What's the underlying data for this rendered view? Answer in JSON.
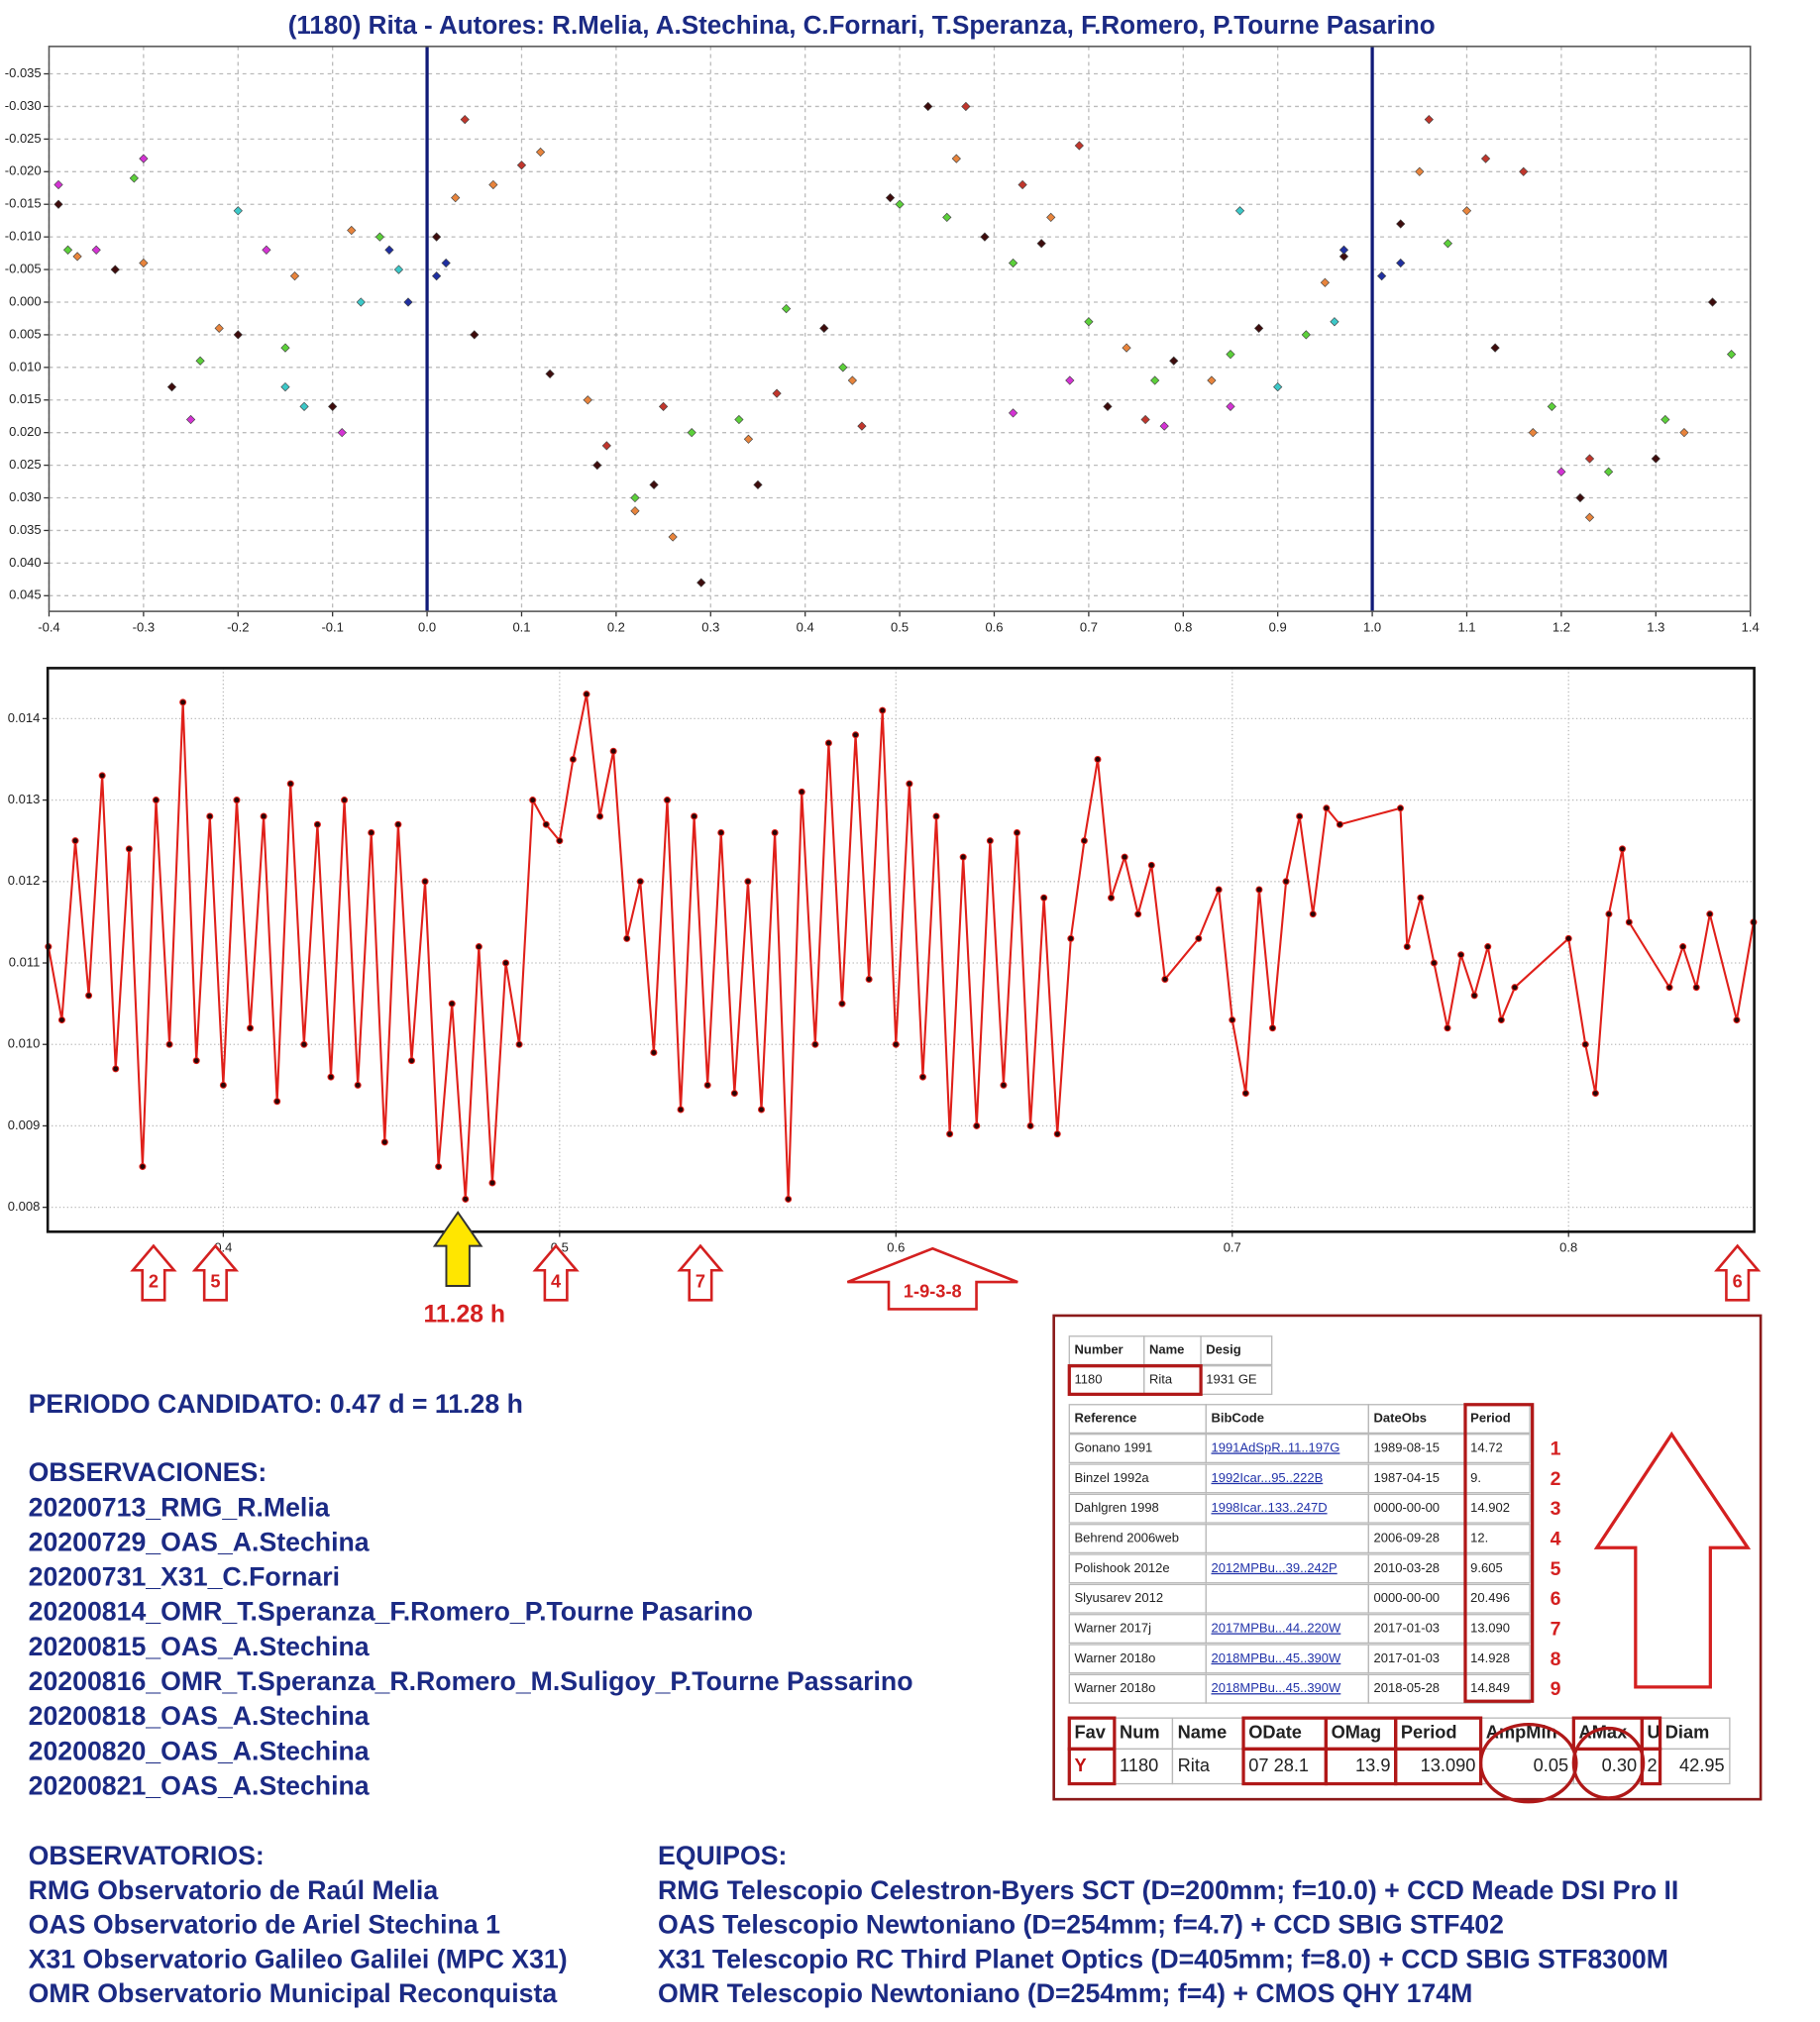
{
  "chart_data": [
    {
      "type": "scatter",
      "title": "(1180) Rita - Autores: R.Melia, A.Stechina, C.Fornari, T.Speranza, F.Romero, P.Tourne Pasarino",
      "xlim": [
        -0.4,
        1.4
      ],
      "ylim": [
        0.0474,
        -0.0392
      ],
      "xticks": [
        -0.4,
        -0.3,
        -0.2,
        -0.1,
        {
          "value": 0,
          "label": "0.0"
        },
        0.1,
        0.2,
        0.3,
        0.4,
        0.5,
        0.6,
        0.7,
        0.8,
        0.9,
        {
          "value": 1,
          "label": "1.0"
        },
        1.1,
        1.2,
        1.3,
        1.4
      ],
      "yticks": [
        -0.035,
        {
          "value": -0.03,
          "label": "-0.030"
        },
        -0.025,
        {
          "value": -0.02,
          "label": "-0.020"
        },
        -0.015,
        {
          "value": -0.01,
          "label": "-0.010"
        },
        -0.005,
        {
          "value": 0,
          "label": "0.000"
        },
        0.005,
        {
          "value": 0.01,
          "label": "0.010"
        },
        0.015,
        {
          "value": 0.02,
          "label": "0.020"
        },
        0.025,
        {
          "value": 0.03,
          "label": "0.030"
        },
        0.035,
        {
          "value": 0.04,
          "label": "0.040"
        },
        0.045
      ],
      "grid": true,
      "vlines": [
        0,
        1
      ],
      "vline_color": "#101a78",
      "series": [
        {
          "color": "#e8843c",
          "x": [
            -0.37,
            -0.3,
            -0.22,
            -0.14,
            -0.08,
            0.03,
            0.07,
            0.12,
            0.17,
            0.22,
            0.26,
            0.34,
            0.45,
            0.56,
            0.66,
            0.74,
            0.83,
            0.95,
            1.05,
            1.1,
            1.17,
            1.23,
            1.33
          ],
          "values": [
            -0.007,
            -0.006,
            0.004,
            -0.004,
            -0.011,
            -0.016,
            -0.018,
            -0.023,
            0.015,
            0.032,
            0.036,
            0.021,
            0.012,
            -0.022,
            -0.013,
            0.007,
            0.012,
            -0.003,
            -0.02,
            -0.014,
            0.02,
            0.033,
            0.02
          ]
        },
        {
          "color": "#3d0c0c",
          "x": [
            -0.39,
            -0.33,
            -0.27,
            -0.2,
            -0.1,
            0.01,
            0.05,
            0.13,
            0.18,
            0.24,
            0.29,
            0.35,
            0.42,
            0.49,
            0.53,
            0.59,
            0.65,
            0.72,
            0.79,
            0.88,
            0.97,
            1.03,
            1.13,
            1.22,
            1.3,
            1.36
          ],
          "values": [
            -0.015,
            -0.005,
            0.013,
            0.005,
            0.016,
            -0.01,
            0.005,
            0.011,
            0.025,
            0.028,
            0.043,
            0.028,
            0.004,
            -0.016,
            -0.03,
            -0.01,
            -0.009,
            0.016,
            0.009,
            0.004,
            -0.007,
            -0.012,
            0.007,
            0.03,
            0.024,
            0
          ]
        },
        {
          "color": "#5cd03a",
          "x": [
            -0.38,
            -0.31,
            -0.24,
            -0.15,
            -0.05,
            0.22,
            0.28,
            0.33,
            0.38,
            0.44,
            0.5,
            0.55,
            0.62,
            0.7,
            0.77,
            0.85,
            0.93,
            1.08,
            1.19,
            1.25,
            1.31,
            1.38
          ],
          "values": [
            -0.008,
            -0.019,
            0.009,
            0.007,
            -0.01,
            0.03,
            0.02,
            0.018,
            0.001,
            0.01,
            -0.015,
            -0.013,
            -0.006,
            0.003,
            0.012,
            0.008,
            0.005,
            -0.009,
            0.016,
            0.026,
            0.018,
            0.008
          ]
        },
        {
          "color": "#d433d4",
          "x": [
            -0.39,
            -0.35,
            -0.3,
            -0.25,
            -0.17,
            -0.09,
            0.62,
            0.68,
            0.78,
            0.85,
            1.2
          ],
          "values": [
            -0.018,
            -0.008,
            -0.022,
            0.018,
            -0.008,
            0.02,
            0.017,
            0.012,
            0.019,
            0.016,
            0.026
          ]
        },
        {
          "color": "#3cc8c8",
          "x": [
            -0.2,
            -0.15,
            -0.13,
            -0.07,
            -0.03,
            0.86,
            0.9,
            0.96
          ],
          "values": [
            -0.014,
            0.013,
            0.016,
            0,
            -0.005,
            -0.014,
            0.013,
            0.003
          ]
        },
        {
          "color": "#1f2fa0",
          "x": [
            -0.04,
            -0.02,
            0.01,
            0.02,
            0.97,
            1.01,
            1.03
          ],
          "values": [
            -0.008,
            0,
            -0.004,
            -0.006,
            -0.008,
            -0.004,
            -0.006
          ]
        },
        {
          "color": "#c0362c",
          "x": [
            0.04,
            0.1,
            0.19,
            0.25,
            0.37,
            0.46,
            0.57,
            0.63,
            0.69,
            0.76,
            1.06,
            1.12,
            1.16,
            1.23
          ],
          "values": [
            -0.028,
            -0.021,
            0.022,
            0.016,
            0.014,
            0.019,
            -0.03,
            -0.018,
            -0.024,
            0.018,
            -0.028,
            -0.022,
            -0.02,
            0.024
          ]
        }
      ]
    },
    {
      "type": "line",
      "xlim": [
        0.3478,
        0.8552
      ],
      "ylim": [
        0.0077,
        0.01462
      ],
      "xticks": [
        0.4,
        0.5,
        0.6,
        0.7,
        0.8
      ],
      "yticks": [
        0.008,
        0.009,
        {
          "value": 0.01,
          "label": "0.010"
        },
        0.011,
        0.012,
        0.013,
        0.014
      ],
      "grid": true,
      "series": [
        {
          "color": "#e0201a",
          "marker_color": "#2a0505",
          "x": [
            0.348,
            0.352,
            0.356,
            0.36,
            0.364,
            0.368,
            0.372,
            0.376,
            0.38,
            0.384,
            0.388,
            0.392,
            0.396,
            0.4,
            0.404,
            0.408,
            0.412,
            0.416,
            0.42,
            0.424,
            0.428,
            0.432,
            0.436,
            0.44,
            0.444,
            0.448,
            0.452,
            0.456,
            0.46,
            0.464,
            0.468,
            0.472,
            0.476,
            0.48,
            0.484,
            0.488,
            0.492,
            0.496,
            0.5,
            0.504,
            0.508,
            0.512,
            0.516,
            0.52,
            0.524,
            0.528,
            0.532,
            0.536,
            0.54,
            0.544,
            0.548,
            0.552,
            0.556,
            0.56,
            0.564,
            0.568,
            0.572,
            0.576,
            0.58,
            0.584,
            0.588,
            0.592,
            0.596,
            0.6,
            0.604,
            0.608,
            0.612,
            0.616,
            0.62,
            0.624,
            0.628,
            0.632,
            0.636,
            0.64,
            0.644,
            0.648,
            0.652,
            0.656,
            0.66,
            0.664,
            0.668,
            0.672,
            0.676,
            0.68,
            0.69,
            0.696,
            0.7,
            0.704,
            0.708,
            0.712,
            0.716,
            0.72,
            0.724,
            0.728,
            0.732,
            0.75,
            0.752,
            0.756,
            0.76,
            0.764,
            0.768,
            0.772,
            0.776,
            0.78,
            0.784,
            0.8,
            0.805,
            0.808,
            0.812,
            0.816,
            0.818,
            0.83,
            0.834,
            0.838,
            0.842,
            0.85,
            0.855
          ],
          "values": [
            0.0112,
            0.0103,
            0.0125,
            0.0106,
            0.0133,
            0.0097,
            0.0124,
            0.0085,
            0.013,
            0.01,
            0.0142,
            0.0098,
            0.0128,
            0.0095,
            0.013,
            0.0102,
            0.0128,
            0.0093,
            0.0132,
            0.01,
            0.0127,
            0.0096,
            0.013,
            0.0095,
            0.0126,
            0.0088,
            0.0127,
            0.0098,
            0.012,
            0.0085,
            0.0105,
            0.0081,
            0.0112,
            0.0083,
            0.011,
            0.01,
            0.013,
            0.0127,
            0.0125,
            0.0135,
            0.0143,
            0.0128,
            0.0136,
            0.0113,
            0.012,
            0.0099,
            0.013,
            0.0092,
            0.0128,
            0.0095,
            0.0126,
            0.0094,
            0.012,
            0.0092,
            0.0126,
            0.0081,
            0.0131,
            0.01,
            0.0137,
            0.0105,
            0.0138,
            0.0108,
            0.0141,
            0.01,
            0.0132,
            0.0096,
            0.0128,
            0.0089,
            0.0123,
            0.009,
            0.0125,
            0.0095,
            0.0126,
            0.009,
            0.0118,
            0.0089,
            0.0113,
            0.0125,
            0.0135,
            0.0118,
            0.0123,
            0.0116,
            0.0122,
            0.0108,
            0.0113,
            0.0119,
            0.0103,
            0.0094,
            0.0119,
            0.0102,
            0.012,
            0.0128,
            0.0116,
            0.0129,
            0.0127,
            0.0129,
            0.0112,
            0.0118,
            0.011,
            0.0102,
            0.0111,
            0.0106,
            0.0112,
            0.0103,
            0.0107,
            0.0113,
            0.01,
            0.0094,
            0.0116,
            0.0124,
            0.0115,
            0.0107,
            0.0112,
            0.0107,
            0.0116,
            0.0103,
            0.0115
          ]
        }
      ]
    }
  ],
  "annotations": {
    "candidate": "11.28 h",
    "literature": [
      "2",
      "5",
      "4",
      "7",
      "1-9-3-8",
      "6"
    ]
  },
  "summary": "PERIODO CANDIDATO: 0.47 d = 11.28 h",
  "observations": {
    "heading": "OBSERVACIONES:",
    "items": [
      "20200713_RMG_R.Melia",
      "20200729_OAS_A.Stechina",
      "20200731_X31_C.Fornari",
      "20200814_OMR_T.Speranza_F.Romero_P.Tourne Pasarino",
      "20200815_OAS_A.Stechina",
      "20200816_OMR_T.Speranza_R.Romero_M.Suligoy_P.Tourne Passarino",
      "20200818_OAS_A.Stechina",
      "20200820_OAS_A.Stechina",
      "20200821_OAS_A.Stechina"
    ]
  },
  "observatories": {
    "heading": "OBSERVATORIOS:",
    "items": [
      "RMG Observatorio de Raúl Melia",
      "OAS Observatorio de Ariel Stechina 1",
      "X31 Observatorio Galileo Galilei (MPC X31)",
      "OMR Observatorio Municipal Reconquista"
    ]
  },
  "equipment": {
    "heading": "EQUIPOS:",
    "items": [
      "RMG Telescopio Celestron-Byers SCT (D=200mm; f=10.0) + CCD Meade DSI Pro II",
      "OAS Telescopio Newtoniano (D=254mm; f=4.7) + CCD SBIG STF402",
      "X31 Telescopio RC Third Planet Optics (D=405mm; f=8.0) + CCD SBIG STF8300M",
      "OMR Telescopio Newtoniano (D=254mm; f=4) + CMOS QHY 174M"
    ]
  },
  "tables": {
    "object": {
      "header": [
        "Number",
        "Name",
        "Desig"
      ],
      "row": [
        "1180",
        "Rita",
        "1931 GE"
      ]
    },
    "references": {
      "header": [
        "Reference",
        "BibCode",
        "DateObs",
        "Period"
      ],
      "rows": [
        [
          "Gonano 1991",
          "1991AdSpR..11..197G",
          "1989-08-15",
          "14.72"
        ],
        [
          "Binzel 1992a",
          "1992Icar...95..222B",
          "1987-04-15",
          "9."
        ],
        [
          "Dahlgren 1998",
          "1998Icar..133..247D",
          "0000-00-00",
          "14.902"
        ],
        [
          "Behrend 2006web",
          null,
          "2006-09-28",
          "12."
        ],
        [
          "Polishook 2012e",
          "2012MPBu...39..242P",
          "2010-03-28",
          "9.605"
        ],
        [
          "Slyusarev 2012",
          null,
          "0000-00-00",
          "20.496"
        ],
        [
          "Warner 2017j",
          "2017MPBu...44..220W",
          "2017-01-03",
          "13.090"
        ],
        [
          "Warner 2018o",
          "2018MPBu...45..390W",
          "2017-01-03",
          "14.928"
        ],
        [
          "Warner 2018o",
          "2018MPBu...45..390W",
          "2018-05-28",
          "14.849"
        ]
      ],
      "index": [
        "1",
        "2",
        "3",
        "4",
        "5",
        "6",
        "7",
        "8",
        "9"
      ]
    },
    "lcdb": {
      "header": [
        "Fav",
        "Num",
        "Name",
        "ODate",
        "OMag",
        "Period",
        "AmpMin",
        "AMax",
        "U",
        "Diam"
      ],
      "row": [
        "Y",
        "1180",
        "Rita",
        "07 28.1",
        "13.9",
        "13.090",
        "0.05",
        "0.30",
        "2",
        "42.95"
      ]
    }
  }
}
